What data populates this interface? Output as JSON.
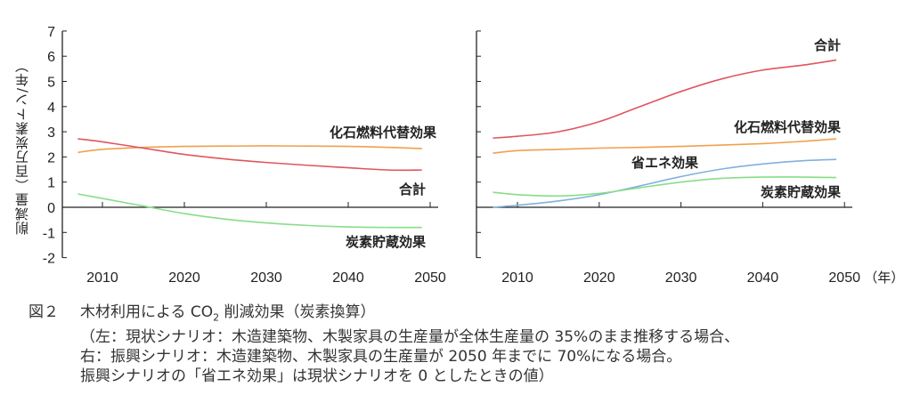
{
  "chart_data": [
    {
      "type": "line",
      "panel": "left",
      "ylabel": "削減量（百万炭素トン/年）",
      "xlabel": "",
      "ylim": [
        -2,
        7
      ],
      "xlim": [
        2005,
        2051
      ],
      "yticks": [
        "7",
        "6",
        "5",
        "4",
        "3",
        "2",
        "1",
        "0",
        "-1",
        "-2"
      ],
      "xticks": [
        "2010",
        "2020",
        "2030",
        "2040",
        "2050"
      ],
      "x": [
        2007,
        2010,
        2015,
        2020,
        2025,
        2030,
        2035,
        2040,
        2045,
        2049
      ],
      "series": [
        {
          "name": "化石燃料代替効果",
          "color": "#f0a050",
          "values": [
            2.18,
            2.3,
            2.38,
            2.42,
            2.43,
            2.44,
            2.43,
            2.42,
            2.38,
            2.33
          ]
        },
        {
          "name": "合計",
          "color": "#e05560",
          "values": [
            2.72,
            2.6,
            2.35,
            2.1,
            1.92,
            1.78,
            1.67,
            1.57,
            1.48,
            1.48
          ]
        },
        {
          "name": "炭素貯蔵効果",
          "color": "#88dd88",
          "values": [
            0.53,
            0.35,
            0.05,
            -0.25,
            -0.47,
            -0.62,
            -0.72,
            -0.78,
            -0.8,
            -0.8
          ]
        }
      ]
    },
    {
      "type": "line",
      "panel": "right",
      "ylim": [
        -2,
        7
      ],
      "xlim": [
        2005,
        2051
      ],
      "xticks": [
        "2010",
        "2020",
        "2030",
        "2040",
        "2050"
      ],
      "xunit": "（年）",
      "x": [
        2007,
        2010,
        2015,
        2020,
        2025,
        2030,
        2035,
        2040,
        2045,
        2049
      ],
      "series": [
        {
          "name": "合計",
          "color": "#e05560",
          "values": [
            2.75,
            2.82,
            3.0,
            3.4,
            4.0,
            4.6,
            5.1,
            5.45,
            5.65,
            5.85
          ]
        },
        {
          "name": "化石燃料代替効果",
          "color": "#f0a050",
          "values": [
            2.15,
            2.25,
            2.3,
            2.35,
            2.38,
            2.42,
            2.47,
            2.53,
            2.62,
            2.72
          ]
        },
        {
          "name": "省エネ効果",
          "color": "#80b0e0",
          "values": [
            0.0,
            0.08,
            0.25,
            0.5,
            0.85,
            1.22,
            1.52,
            1.72,
            1.85,
            1.9
          ]
        },
        {
          "name": "炭素貯蔵効果",
          "color": "#88dd88",
          "values": [
            0.6,
            0.5,
            0.45,
            0.55,
            0.78,
            1.0,
            1.15,
            1.2,
            1.2,
            1.18
          ]
        }
      ]
    }
  ],
  "caption": {
    "fig_label": "図２",
    "title_pre": "木材利用による CO",
    "title_sub": "2",
    "title_post": " 削減効果（炭素換算）",
    "lines": [
      "（左：現状シナリオ：木造建築物、木製家具の生産量が全体生産量の 35%のまま推移する場合、",
      "右：振興シナリオ：木造建築物、木製家具の生産量が 2050 年までに 70%になる場合。",
      "振興シナリオの「省エネ効果」は現状シナリオを 0 としたときの値）"
    ]
  }
}
